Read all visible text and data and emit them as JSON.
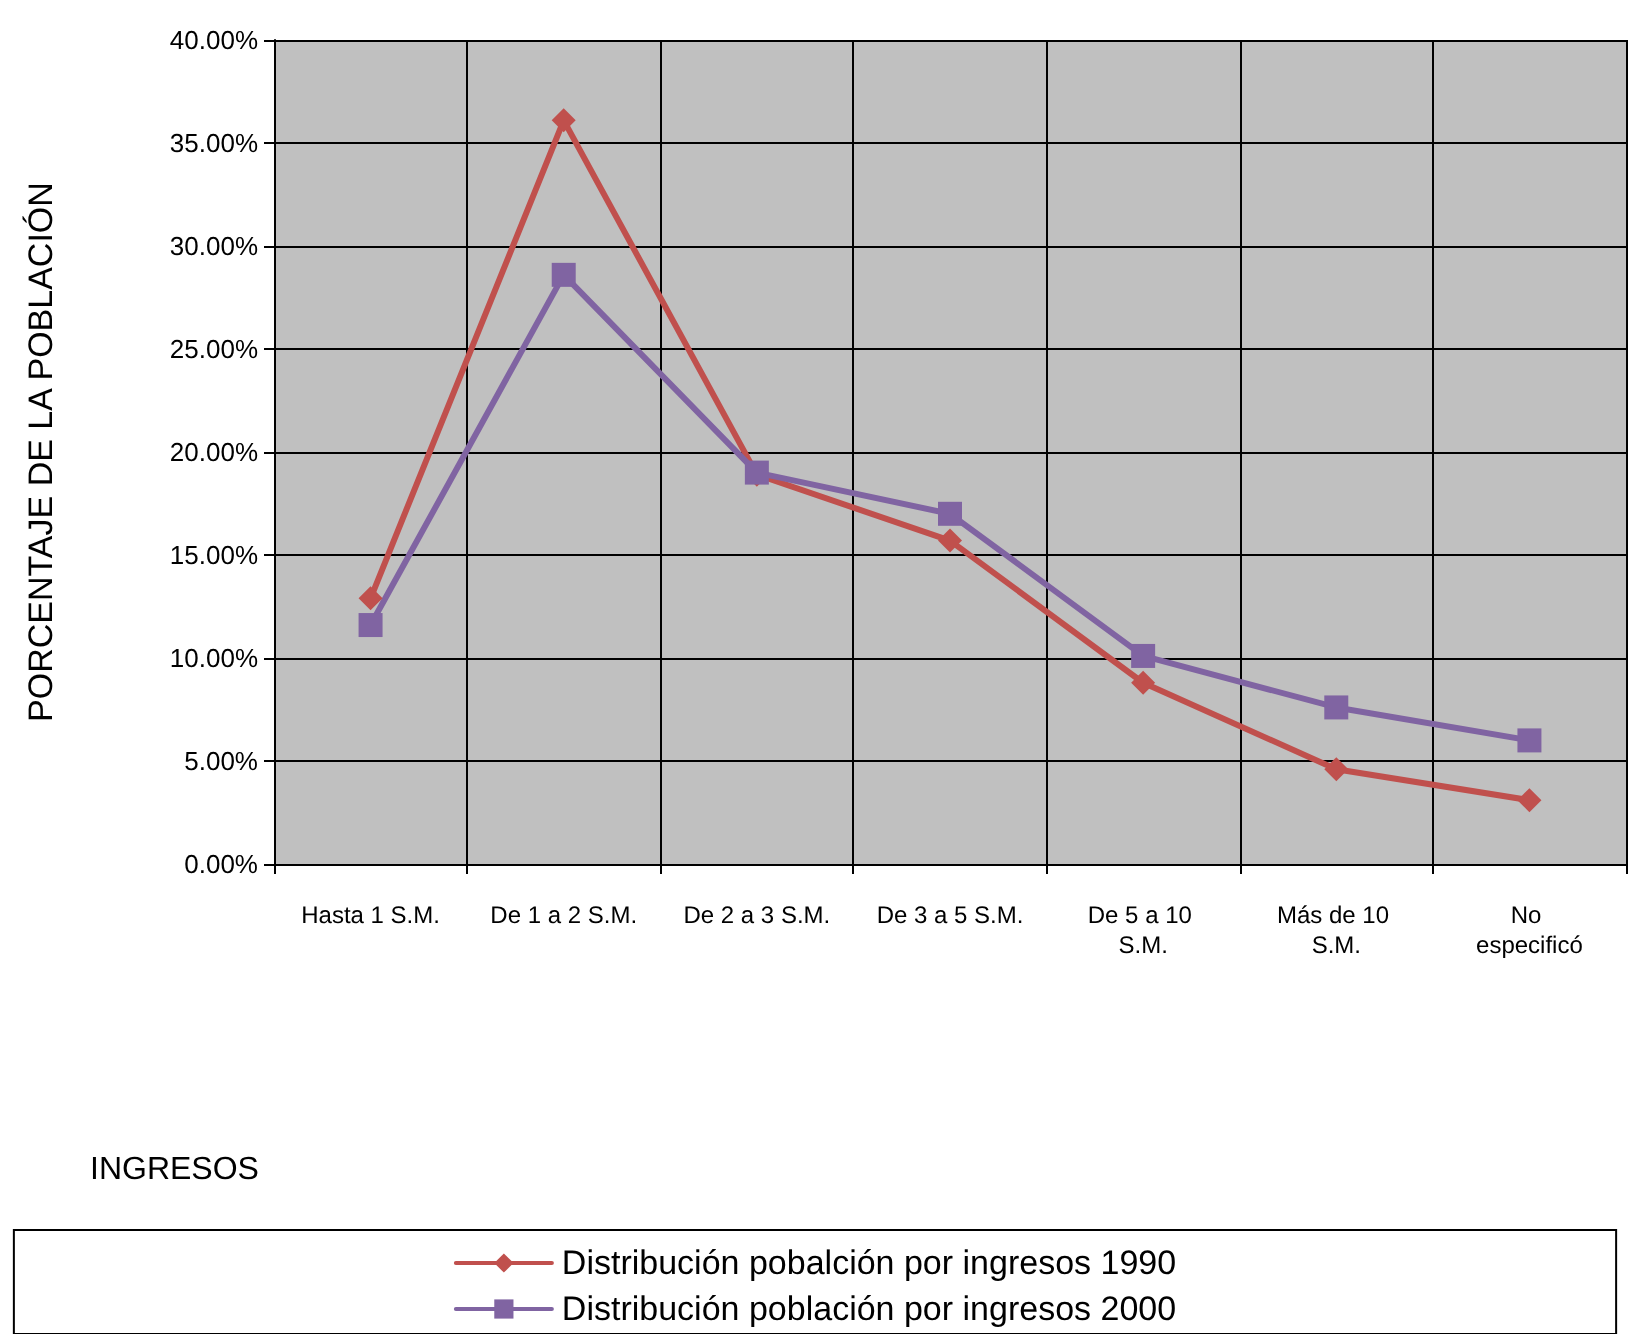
{
  "chart_data": {
    "type": "line",
    "annotations": [
      "INGRESOS"
    ],
    "ylabel": "PORCENTAJE DE LA POBLACIÓN",
    "categories": [
      "Hasta 1 S.M.",
      "De 1 a 2 S.M.",
      "De 2 a 3 S.M.",
      "De 3 a 5 S.M.",
      "De 5 a 10 S.M.",
      "Más de 10 S.M.",
      "No especificó"
    ],
    "series": [
      {
        "name": "Distribución pobalción por ingresos 1990",
        "color": "#c0504d",
        "marker": "diamond",
        "values": [
          12.9,
          36.1,
          18.9,
          15.7,
          8.8,
          4.6,
          3.1
        ]
      },
      {
        "name": "Distribución población por ingresos 2000",
        "color": "#8064a2",
        "marker": "square",
        "values": [
          11.6,
          28.6,
          19.0,
          17.0,
          10.1,
          7.6,
          6.0
        ]
      }
    ],
    "ylim": [
      0,
      40
    ],
    "yticks": [
      {
        "value": 0,
        "label": "0.00%"
      },
      {
        "value": 5,
        "label": "5.00%"
      },
      {
        "value": 10,
        "label": "10.00%"
      },
      {
        "value": 15,
        "label": "15.00%"
      },
      {
        "value": 20,
        "label": "20.00%"
      },
      {
        "value": 25,
        "label": "25.00%"
      },
      {
        "value": 30,
        "label": "30.00%"
      },
      {
        "value": 35,
        "label": "35.00%"
      },
      {
        "value": 40,
        "label": "40.00%"
      }
    ],
    "grid": true,
    "legend": "bottom",
    "line_style": "solid"
  }
}
